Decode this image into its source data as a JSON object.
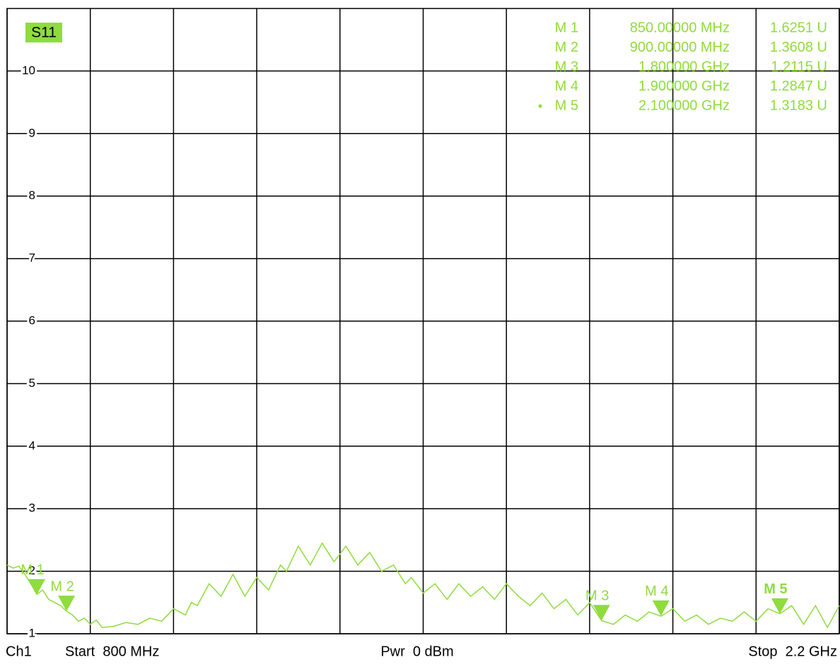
{
  "chart_data": {
    "type": "line",
    "trace_label": "S11",
    "xlim": [
      800,
      2200
    ],
    "xticks": [
      800,
      940,
      1080,
      1220,
      1360,
      1500,
      1640,
      1780,
      1920,
      2060,
      2200
    ],
    "ylim": [
      1,
      11
    ],
    "yticks": [
      1,
      2,
      3,
      4,
      5,
      6,
      7,
      8,
      9,
      10
    ],
    "grid": true,
    "series": [
      {
        "name": "S11",
        "color": "#8fdc3c",
        "x": [
          800,
          810,
          820,
          830,
          840,
          850,
          860,
          870,
          880,
          890,
          900,
          910,
          920,
          930,
          940,
          950,
          960,
          980,
          1000,
          1020,
          1040,
          1060,
          1080,
          1100,
          1110,
          1120,
          1140,
          1160,
          1180,
          1200,
          1220,
          1240,
          1260,
          1270,
          1290,
          1310,
          1330,
          1350,
          1370,
          1390,
          1410,
          1430,
          1450,
          1470,
          1480,
          1500,
          1520,
          1540,
          1560,
          1580,
          1600,
          1620,
          1640,
          1660,
          1680,
          1700,
          1720,
          1740,
          1760,
          1780,
          1800,
          1820,
          1840,
          1860,
          1880,
          1900,
          1920,
          1940,
          1960,
          1980,
          2000,
          2020,
          2040,
          2060,
          2080,
          2100,
          2120,
          2140,
          2160,
          2180,
          2200
        ],
        "values": [
          2.1,
          2.05,
          2.08,
          1.95,
          1.8,
          1.63,
          1.7,
          1.55,
          1.5,
          1.45,
          1.36,
          1.3,
          1.2,
          1.25,
          1.15,
          1.22,
          1.1,
          1.12,
          1.18,
          1.15,
          1.25,
          1.2,
          1.4,
          1.3,
          1.5,
          1.45,
          1.8,
          1.6,
          1.95,
          1.6,
          1.9,
          1.7,
          2.1,
          2.0,
          2.4,
          2.1,
          2.45,
          2.15,
          2.4,
          2.1,
          2.3,
          2.0,
          2.1,
          1.8,
          1.9,
          1.65,
          1.8,
          1.55,
          1.8,
          1.6,
          1.75,
          1.55,
          1.8,
          1.6,
          1.45,
          1.65,
          1.4,
          1.55,
          1.3,
          1.5,
          1.21,
          1.15,
          1.3,
          1.2,
          1.35,
          1.28,
          1.4,
          1.2,
          1.3,
          1.15,
          1.25,
          1.2,
          1.35,
          1.2,
          1.4,
          1.32,
          1.45,
          1.15,
          1.45,
          1.1,
          1.45
        ]
      }
    ],
    "markers": [
      {
        "name": "M 1",
        "x": 850,
        "x_label": "850.00000 MHz",
        "value": 1.6251,
        "value_label": "1.6251 U"
      },
      {
        "name": "M 2",
        "x": 900,
        "x_label": "900.00000 MHz",
        "value": 1.3608,
        "value_label": "1.3608 U"
      },
      {
        "name": "M 3",
        "x": 1800,
        "x_label": "1.800000 GHz",
        "value": 1.2115,
        "value_label": "1.2115 U"
      },
      {
        "name": "M 4",
        "x": 1900,
        "x_label": "1.900000 GHz",
        "value": 1.2847,
        "value_label": "1.2847 U"
      },
      {
        "name": "M 5",
        "x": 2100,
        "x_label": "2.100000 GHz",
        "value": 1.3183,
        "value_label": "1.3183 U",
        "active": true
      }
    ],
    "footer": {
      "channel": "Ch1",
      "start": "Start  800 MHz",
      "power": "Pwr  0 dBm",
      "stop": "Stop  2.2 GHz"
    }
  }
}
